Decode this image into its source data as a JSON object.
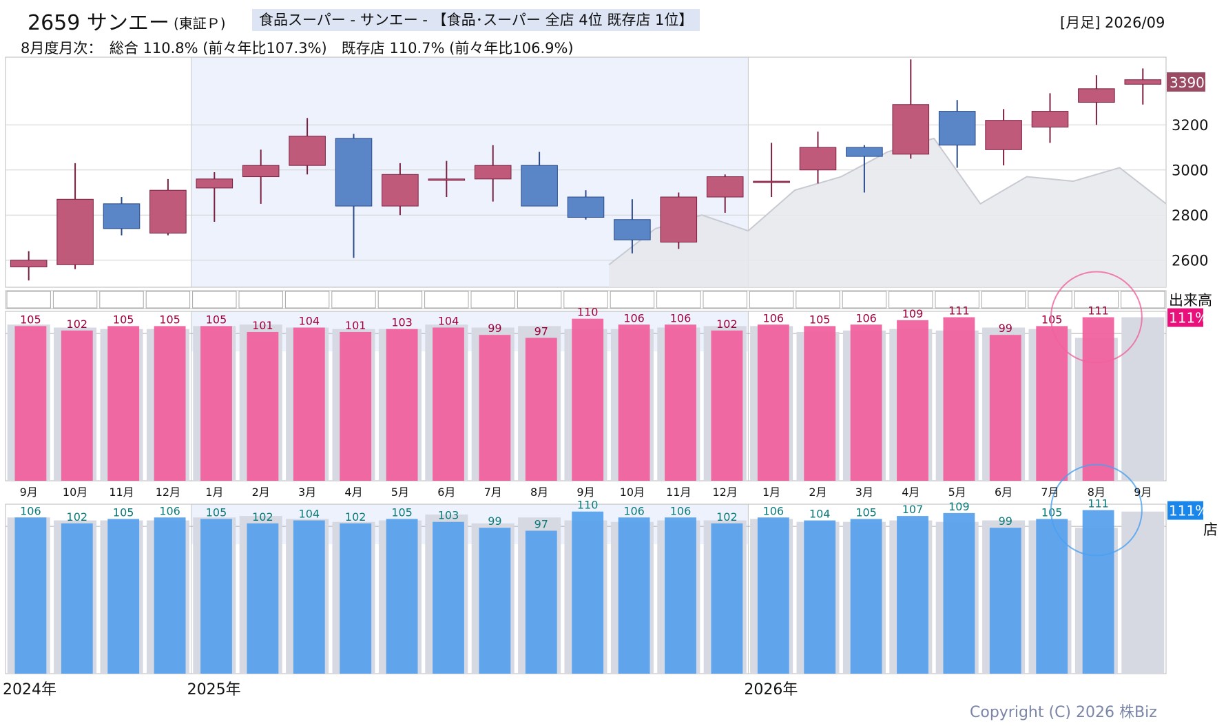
{
  "header": {
    "code_name": "2659 サンエー",
    "exchange": "(東証Ｐ)",
    "category": "食品スーパー - サンエー - 【食品･スーパー 全店 4位 既存店 1位】",
    "period": "[月足] 2026/09",
    "summary": "8月度月次：　総合 110.8% (前々年比107.3%)　既存店 110.7% (前々年比106.9%)"
  },
  "labels": {
    "volume": "出来高",
    "total_tag": "111%",
    "existing_tag": "111%",
    "existing_suffix": "店",
    "last_price": "3390"
  },
  "copyright": "Copyright (C) 2026 株Biz",
  "colors": {
    "up_candle": "#c05a7a",
    "down_candle": "#5a86c8",
    "total_bar": "#f0629e",
    "existing_bar": "#5aa2ec",
    "prior_bar": "#d6d8e2",
    "total_text": "#a0003c",
    "existing_text": "#0a7a7a",
    "highlight_band": "#edf2fc"
  },
  "chart_data": [
    {
      "type": "candlestick",
      "x": [
        "2024-09",
        "2024-10",
        "2024-11",
        "2024-12",
        "2025-01",
        "2025-02",
        "2025-03",
        "2025-04",
        "2025-05",
        "2025-06",
        "2025-07",
        "2025-08",
        "2025-09",
        "2025-10",
        "2025-11",
        "2025-12",
        "2026-01",
        "2026-02",
        "2026-03",
        "2026-04",
        "2026-05",
        "2026-06",
        "2026-07",
        "2026-08",
        "2026-09"
      ],
      "open": [
        2570,
        2580,
        2850,
        2720,
        2920,
        2970,
        3020,
        3140,
        2840,
        2960,
        2960,
        3020,
        2880,
        2780,
        2680,
        2880,
        2950,
        3000,
        3100,
        3070,
        3260,
        3090,
        3190,
        3300,
        3380
      ],
      "high": [
        2640,
        3030,
        2880,
        2960,
        2990,
        3090,
        3230,
        3160,
        3030,
        3040,
        3110,
        3080,
        2910,
        2870,
        2900,
        2980,
        3120,
        3170,
        3110,
        3490,
        3310,
        3270,
        3340,
        3420,
        3450
      ],
      "low": [
        2510,
        2560,
        2710,
        2710,
        2770,
        2850,
        2980,
        2610,
        2800,
        2880,
        2860,
        2840,
        2780,
        2630,
        2650,
        2810,
        2880,
        2940,
        2900,
        3050,
        3010,
        3020,
        3120,
        3200,
        3290
      ],
      "close": [
        2600,
        2870,
        2740,
        2910,
        2960,
        3020,
        3150,
        2840,
        2980,
        2960,
        3020,
        2840,
        2790,
        2690,
        2880,
        2970,
        2950,
        3100,
        3060,
        3290,
        3110,
        3220,
        3260,
        3360,
        3400
      ],
      "yticks": [
        2600,
        2800,
        3000,
        3200
      ],
      "ylim": [
        2480,
        3500
      ],
      "last_price": 3390,
      "reference_line": [
        2580,
        2740,
        2800,
        2730,
        2910,
        2970,
        3080,
        3140,
        2850,
        2970,
        2950,
        3010,
        2850,
        2790
      ]
    },
    {
      "type": "bar",
      "title": "総合",
      "categories": [
        "9月",
        "10月",
        "11月",
        "12月",
        "1月",
        "2月",
        "3月",
        "4月",
        "5月",
        "6月",
        "7月",
        "8月",
        "9月",
        "10月",
        "11月",
        "12月",
        "1月",
        "2月",
        "3月",
        "4月",
        "5月",
        "6月",
        "7月",
        "8月",
        "9月"
      ],
      "series": [
        {
          "values": [
            105,
            102,
            105,
            105,
            105,
            101,
            104,
            101,
            103,
            104,
            99,
            97,
            110,
            106,
            106,
            102,
            106,
            105,
            106,
            109,
            111,
            99,
            105,
            111,
            null
          ]
        },
        {
          "values": [
            106,
            104,
            103,
            103,
            105,
            106,
            104,
            103,
            103,
            106,
            104,
            105,
            103,
            103,
            104,
            105,
            105,
            101,
            102,
            103,
            102,
            104,
            103,
            97,
            111
          ]
        }
      ],
      "ylim": [
        0,
        115
      ]
    },
    {
      "type": "bar",
      "title": "既存店",
      "categories": [
        "9月",
        "10月",
        "11月",
        "12月",
        "1月",
        "2月",
        "3月",
        "4月",
        "5月",
        "6月",
        "7月",
        "8月",
        "9月",
        "10月",
        "11月",
        "12月",
        "1月",
        "2月",
        "3月",
        "4月",
        "5月",
        "6月",
        "7月",
        "8月",
        "9月"
      ],
      "series": [
        {
          "values": [
            106,
            102,
            105,
            106,
            105,
            102,
            104,
            102,
            105,
            103,
            99,
            97,
            110,
            106,
            106,
            102,
            106,
            104,
            105,
            107,
            109,
            99,
            105,
            111,
            null
          ]
        },
        {
          "values": [
            106,
            104,
            104,
            104,
            106,
            107,
            105,
            103,
            104,
            108,
            102,
            106,
            104,
            103,
            104,
            104,
            105,
            103,
            103,
            104,
            103,
            104,
            104,
            99,
            110
          ]
        }
      ],
      "ylim": [
        0,
        115
      ]
    }
  ],
  "year_labels": [
    {
      "text": "2024年",
      "index": 0
    },
    {
      "text": "2025年",
      "index": 4
    },
    {
      "text": "2026年",
      "index": 16
    }
  ]
}
